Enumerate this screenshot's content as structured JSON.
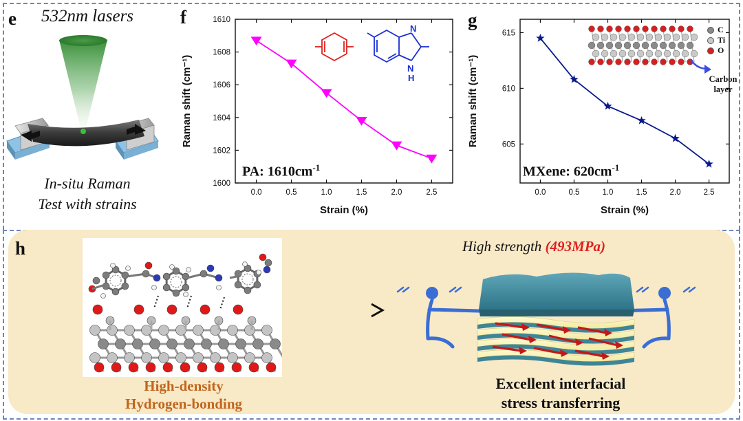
{
  "panels": {
    "e": {
      "letter": "e",
      "laser_label": "532nm lasers",
      "caption_line1": "In-situ Raman",
      "caption_line2": "Test with strains"
    },
    "f": {
      "letter": "f",
      "annotation_prefix": "PA: 1610cm",
      "annotation_sup": "-1"
    },
    "g": {
      "letter": "g",
      "annotation_prefix": "MXene: 620cm",
      "annotation_sup": "-1",
      "legend": [
        {
          "symbol": "C",
          "color": "#8a8a8a"
        },
        {
          "symbol": "Ti",
          "color": "#c9c9c9"
        },
        {
          "symbol": "O",
          "color": "#d42020"
        }
      ],
      "carbon_layer_line1": "Carbon",
      "carbon_layer_line2": "layer"
    },
    "h": {
      "letter": "h",
      "strength_prefix": "High strength ",
      "strength_value": "(493MPa)",
      "left_caption_line1": "High-density",
      "left_caption_line2": "Hydrogen-bonding",
      "right_caption_line1": "Excellent interfacial",
      "right_caption_line2": "stress transferring",
      "colors": {
        "strength_value": "#e02020",
        "left_caption": "#c0661e"
      }
    }
  },
  "chart_data": [
    {
      "id": "f",
      "type": "line",
      "marker": "triangle-down",
      "color": "#ff00ff",
      "xlabel": "Strain (%)",
      "ylabel": "Raman shift (cm⁻¹)",
      "xlim": [
        -0.3,
        2.8
      ],
      "ylim": [
        1600,
        1610
      ],
      "xticks": [
        0.0,
        0.5,
        1.0,
        1.5,
        2.0,
        2.5
      ],
      "xtick_labels": [
        "0.0",
        "0.5",
        "1.0",
        "1.5",
        "2.0",
        "2.5"
      ],
      "yticks": [
        1600,
        1602,
        1604,
        1606,
        1608,
        1610
      ],
      "ytick_labels": [
        "1600",
        "1602",
        "1604",
        "1606",
        "1608",
        "1610"
      ],
      "series": [
        {
          "x": [
            0.0,
            0.5,
            1.0,
            1.5,
            2.0,
            2.5
          ],
          "y": [
            1608.7,
            1607.3,
            1605.5,
            1603.8,
            1602.3,
            1601.5
          ]
        }
      ]
    },
    {
      "id": "g",
      "type": "line",
      "marker": "star",
      "color": "#0a1a8c",
      "xlabel": "Strain (%)",
      "ylabel": "Raman shift (cm⁻¹)",
      "xlim": [
        -0.3,
        2.8
      ],
      "ylim": [
        601.5,
        616.2
      ],
      "xticks": [
        0.0,
        0.5,
        1.0,
        1.5,
        2.0,
        2.5
      ],
      "xtick_labels": [
        "0.0",
        "0.5",
        "1.0",
        "1.5",
        "2.0",
        "2.5"
      ],
      "yticks": [
        605,
        610,
        615
      ],
      "ytick_labels": [
        "605",
        "610",
        "615"
      ],
      "series": [
        {
          "x": [
            0.0,
            0.5,
            1.0,
            1.5,
            2.0,
            2.5
          ],
          "y": [
            614.5,
            610.8,
            608.4,
            607.1,
            605.5,
            603.2
          ]
        }
      ]
    }
  ]
}
